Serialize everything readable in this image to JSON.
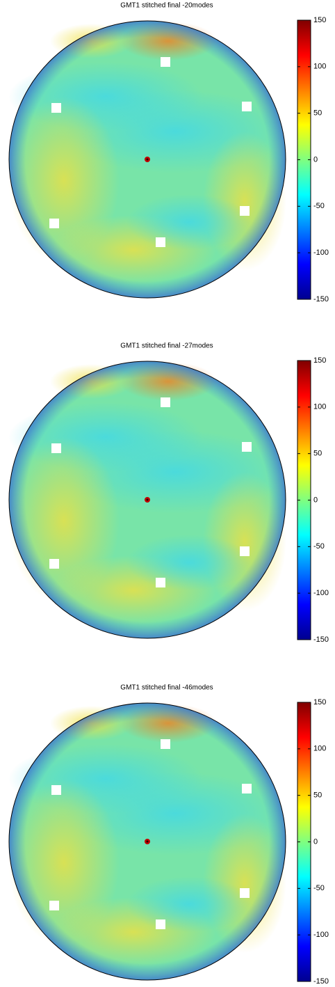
{
  "chart_data": [
    {
      "type": "heatmap",
      "title": "GMT1 stitched final -20modes",
      "clim": [
        -150,
        150
      ],
      "cticks": [
        -150,
        -100,
        -50,
        0,
        50,
        100,
        150
      ]
    },
    {
      "type": "heatmap",
      "title": "GMT1 stitched final -27modes",
      "clim": [
        -150,
        150
      ],
      "cticks": [
        -150,
        -100,
        -50,
        0,
        50,
        100,
        150
      ]
    },
    {
      "type": "heatmap",
      "title": "GMT1 stitched final -46modes",
      "clim": [
        -150,
        150
      ],
      "cticks": [
        -150,
        -100,
        -50,
        0,
        50,
        100,
        150
      ]
    }
  ]
}
